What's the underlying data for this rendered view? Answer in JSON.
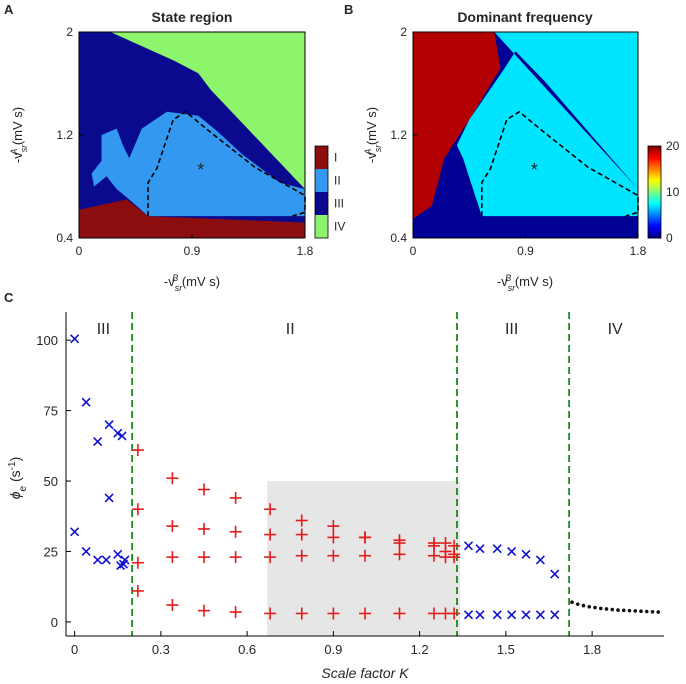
{
  "chart_data": [
    {
      "type": "heatmap",
      "panel_label": "A",
      "title": "State region",
      "xlabel": {
        "prefix": "-v",
        "sub": "sr",
        "sup": "B",
        "unit": " (mV s)"
      },
      "ylabel": {
        "prefix": "-v",
        "sub": "sr",
        "sup": "A",
        "unit": " (mV s)"
      },
      "xlim": [
        0,
        1.8
      ],
      "ylim": [
        0.4,
        2
      ],
      "xticks": [
        {
          "v": 0,
          "label": "0"
        },
        {
          "v": 0.9,
          "label": "0.9"
        },
        {
          "v": 1.8,
          "label": "1.8"
        }
      ],
      "yticks": [
        {
          "v": 0.4,
          "label": "0.4"
        },
        {
          "v": 1.2,
          "label": "1.2"
        },
        {
          "v": 2,
          "label": "2"
        }
      ],
      "colorbar": {
        "categories": [
          "I",
          "II",
          "III",
          "IV"
        ],
        "colors": [
          "#8b0d0d",
          "#3399f0",
          "#0a0a8f",
          "#8cf56b"
        ]
      },
      "regions": [
        {
          "state": "IV",
          "polygon": [
            [
              0.25,
              2
            ],
            [
              1.8,
              2
            ],
            [
              1.8,
              0.78
            ],
            [
              1.05,
              1.55
            ],
            [
              0.95,
              1.68
            ],
            [
              0.75,
              1.78
            ]
          ]
        },
        {
          "state": "II",
          "polygon": [
            [
              0.18,
              1.2
            ],
            [
              0.3,
              1.25
            ],
            [
              0.35,
              1.12
            ],
            [
              0.4,
              1.02
            ],
            [
              0.5,
              1.25
            ],
            [
              0.7,
              1.38
            ],
            [
              0.95,
              1.35
            ],
            [
              1.1,
              1.23
            ],
            [
              1.3,
              1.05
            ],
            [
              1.6,
              0.83
            ],
            [
              1.8,
              0.78
            ],
            [
              1.8,
              0.57
            ],
            [
              0.55,
              0.57
            ],
            [
              0.4,
              0.7
            ],
            [
              0.3,
              0.78
            ],
            [
              0.22,
              0.88
            ],
            [
              0.12,
              0.8
            ],
            [
              0.1,
              0.9
            ],
            [
              0.18,
              1.0
            ]
          ]
        },
        {
          "state": "I",
          "polygon": [
            [
              0,
              0.4
            ],
            [
              0,
              0.62
            ],
            [
              0.15,
              0.65
            ],
            [
              0.38,
              0.7
            ],
            [
              0.55,
              0.57
            ],
            [
              1.8,
              0.52
            ],
            [
              1.8,
              0.4
            ]
          ]
        }
      ],
      "dashed_boundary": [
        [
          0.55,
          0.57
        ],
        [
          0.55,
          0.83
        ],
        [
          0.62,
          0.94
        ],
        [
          0.75,
          1.32
        ],
        [
          0.85,
          1.38
        ],
        [
          1.05,
          1.22
        ],
        [
          1.4,
          0.95
        ],
        [
          1.8,
          0.73
        ],
        [
          1.8,
          0.6
        ],
        [
          1.7,
          0.57
        ]
      ],
      "marker": {
        "x": 0.97,
        "y": 0.93,
        "symbol": "*"
      }
    },
    {
      "type": "heatmap",
      "panel_label": "B",
      "title": "Dominant frequency",
      "xlabel": {
        "prefix": "-v",
        "sub": "sr",
        "sup": "B",
        "unit": " (mV s)"
      },
      "ylabel": {
        "prefix": "-v",
        "sub": "sr",
        "sup": "A",
        "unit": " (mV s)"
      },
      "xlim": [
        0,
        1.8
      ],
      "ylim": [
        0.4,
        2
      ],
      "xticks": [
        {
          "v": 0,
          "label": "0"
        },
        {
          "v": 0.9,
          "label": "0.9"
        },
        {
          "v": 1.8,
          "label": "1.8"
        }
      ],
      "yticks": [
        {
          "v": 0.4,
          "label": "0.4"
        },
        {
          "v": 1.2,
          "label": "1.2"
        },
        {
          "v": 2,
          "label": "2"
        }
      ],
      "colorbar": {
        "min": 0,
        "max": 20,
        "ticks": [
          "0",
          "10",
          "20"
        ]
      },
      "regions": [
        {
          "freq": 19,
          "polygon": [
            [
              0,
              0.55
            ],
            [
              0,
              2
            ],
            [
              0.65,
              2
            ],
            [
              0.7,
              1.72
            ],
            [
              0.45,
              1.32
            ],
            [
              0.25,
              1.02
            ],
            [
              0.15,
              0.65
            ]
          ]
        },
        {
          "freq": 7,
          "polygon": [
            [
              0.65,
              2
            ],
            [
              1.8,
              2
            ],
            [
              1.8,
              0.78
            ],
            [
              1.05,
              1.62
            ],
            [
              0.82,
              1.85
            ],
            [
              0.72,
              1.7
            ],
            [
              0.45,
              1.32
            ],
            [
              0.35,
              1.12
            ],
            [
              0.4,
              1.02
            ],
            [
              0.55,
              0.57
            ],
            [
              1.8,
              0.57
            ],
            [
              1.8,
              0.78
            ]
          ]
        }
      ],
      "dashed_boundary": [
        [
          0.55,
          0.57
        ],
        [
          0.55,
          0.83
        ],
        [
          0.62,
          0.94
        ],
        [
          0.75,
          1.32
        ],
        [
          0.85,
          1.38
        ],
        [
          1.05,
          1.22
        ],
        [
          1.4,
          0.95
        ],
        [
          1.8,
          0.73
        ],
        [
          1.8,
          0.6
        ],
        [
          1.7,
          0.57
        ]
      ],
      "marker": {
        "x": 0.97,
        "y": 0.93,
        "symbol": "*"
      }
    },
    {
      "type": "scatter",
      "panel_label": "C",
      "xlabel": "Scale factor K",
      "ylabel": {
        "prefix": "ϕ",
        "sub": "e",
        "unit_pre": " (s",
        "sup": "-1",
        "unit_post": ")"
      },
      "xlim": [
        -0.03,
        2.05
      ],
      "ylim": [
        -5,
        110
      ],
      "xticks": [
        {
          "v": 0,
          "label": "0"
        },
        {
          "v": 0.3,
          "label": "0.3"
        },
        {
          "v": 0.6,
          "label": "0.6"
        },
        {
          "v": 0.9,
          "label": "0.9"
        },
        {
          "v": 1.2,
          "label": "1.2"
        },
        {
          "v": 1.5,
          "label": "1.5"
        },
        {
          "v": 1.8,
          "label": "1.8"
        }
      ],
      "yticks": [
        {
          "v": 0,
          "label": "0"
        },
        {
          "v": 25,
          "label": "25"
        },
        {
          "v": 50,
          "label": "50"
        },
        {
          "v": 75,
          "label": "75"
        },
        {
          "v": 100,
          "label": "100"
        }
      ],
      "shaded_region": {
        "x": [
          0.67,
          1.34
        ],
        "y": [
          -5,
          50
        ]
      },
      "vlines": [
        0.2,
        1.33,
        1.72
      ],
      "region_labels": [
        {
          "x": 0.1,
          "label": "III"
        },
        {
          "x": 0.75,
          "label": "II"
        },
        {
          "x": 1.52,
          "label": "III"
        },
        {
          "x": 1.88,
          "label": "IV"
        }
      ],
      "series": [
        {
          "name": "state III (x)",
          "marker": "x",
          "color": "#1010d0",
          "points": [
            [
              0,
              100.5
            ],
            [
              0.04,
              78
            ],
            [
              0.08,
              64
            ],
            [
              0.12,
              70
            ],
            [
              0.15,
              67
            ],
            [
              0.165,
              66
            ],
            [
              0.12,
              44
            ],
            [
              0,
              32
            ],
            [
              0.04,
              25
            ],
            [
              0.08,
              22
            ],
            [
              0.11,
              22
            ],
            [
              0.15,
              24
            ],
            [
              0.16,
              20
            ],
            [
              0.17,
              20.5
            ],
            [
              0.175,
              22
            ],
            [
              1.37,
              27
            ],
            [
              1.41,
              26
            ],
            [
              1.47,
              26
            ],
            [
              1.52,
              25
            ],
            [
              1.57,
              24
            ],
            [
              1.62,
              22
            ],
            [
              1.67,
              17
            ],
            [
              1.37,
              2.5
            ],
            [
              1.41,
              2.5
            ],
            [
              1.47,
              2.5
            ],
            [
              1.52,
              2.5
            ],
            [
              1.57,
              2.5
            ],
            [
              1.62,
              2.5
            ],
            [
              1.67,
              2.5
            ]
          ]
        },
        {
          "name": "state II (+)",
          "marker": "+",
          "color": "#e51b1b",
          "points": [
            [
              0.22,
              61
            ],
            [
              0.22,
              40
            ],
            [
              0.22,
              21
            ],
            [
              0.22,
              11
            ],
            [
              0.34,
              51
            ],
            [
              0.34,
              34
            ],
            [
              0.34,
              23
            ],
            [
              0.34,
              6
            ],
            [
              0.45,
              47
            ],
            [
              0.45,
              33
            ],
            [
              0.45,
              23
            ],
            [
              0.45,
              4
            ],
            [
              0.56,
              44
            ],
            [
              0.56,
              32
            ],
            [
              0.56,
              23
            ],
            [
              0.56,
              3.5
            ],
            [
              0.68,
              40
            ],
            [
              0.68,
              31
            ],
            [
              0.68,
              23
            ],
            [
              0.68,
              3
            ],
            [
              0.79,
              36
            ],
            [
              0.79,
              31
            ],
            [
              0.79,
              23.5
            ],
            [
              0.79,
              3
            ],
            [
              0.9,
              34
            ],
            [
              0.9,
              30
            ],
            [
              0.9,
              23.5
            ],
            [
              0.9,
              3
            ],
            [
              1.01,
              30
            ],
            [
              1.01,
              30
            ],
            [
              1.01,
              23.5
            ],
            [
              1.01,
              3
            ],
            [
              1.13,
              28
            ],
            [
              1.13,
              29
            ],
            [
              1.13,
              24
            ],
            [
              1.13,
              3
            ],
            [
              1.25,
              27
            ],
            [
              1.25,
              28
            ],
            [
              1.25,
              23.5
            ],
            [
              1.25,
              3
            ],
            [
              1.29,
              25
            ],
            [
              1.29,
              28
            ],
            [
              1.29,
              23
            ],
            [
              1.29,
              3
            ],
            [
              1.32,
              27
            ],
            [
              1.32,
              24
            ],
            [
              1.32,
              23
            ],
            [
              1.32,
              3
            ]
          ]
        },
        {
          "name": "state IV (.)",
          "marker": "dot",
          "color": "#111111",
          "points": [
            [
              1.73,
              7
            ],
            [
              1.75,
              6.3
            ],
            [
              1.77,
              5.8
            ],
            [
              1.79,
              5.4
            ],
            [
              1.81,
              5.1
            ],
            [
              1.83,
              4.8
            ],
            [
              1.85,
              4.6
            ],
            [
              1.87,
              4.4
            ],
            [
              1.89,
              4.2
            ],
            [
              1.91,
              4.1
            ],
            [
              1.93,
              4.0
            ],
            [
              1.95,
              3.9
            ],
            [
              1.97,
              3.8
            ],
            [
              1.99,
              3.7
            ],
            [
              2.01,
              3.6
            ],
            [
              2.03,
              3.5
            ]
          ]
        }
      ]
    }
  ]
}
